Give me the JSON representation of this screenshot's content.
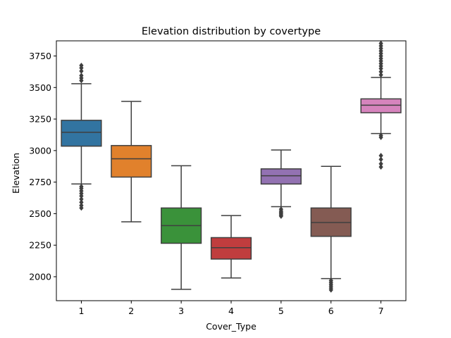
{
  "chart_data": {
    "type": "box",
    "title": "Elevation distribution by covertype",
    "xlabel": "Cover_Type",
    "ylabel": "Elevation",
    "categories": [
      "1",
      "2",
      "3",
      "4",
      "5",
      "6",
      "7"
    ],
    "ylim": [
      1810,
      3870
    ],
    "yticks": [
      2000,
      2250,
      2500,
      2750,
      3000,
      3250,
      3500,
      3750
    ],
    "grid": false,
    "colors": [
      "#3274a1",
      "#e1812c",
      "#3a923a",
      "#c03d3e",
      "#9372b2",
      "#845b53",
      "#d684bd"
    ],
    "edge_color": "#3f3f3f",
    "boxes": [
      {
        "category": "1",
        "q1": 3035,
        "median": 3145,
        "q3": 3240,
        "whisker_low": 2735,
        "whisker_high": 3530,
        "outliers": [
          2545,
          2565,
          2590,
          2615,
          2640,
          2660,
          2680,
          2700,
          2715,
          3555,
          3575,
          3595,
          3630,
          3655,
          3675
        ]
      },
      {
        "category": "2",
        "q1": 2790,
        "median": 2935,
        "q3": 3040,
        "whisker_low": 2435,
        "whisker_high": 3390,
        "outliers": []
      },
      {
        "category": "3",
        "q1": 2265,
        "median": 2405,
        "q3": 2545,
        "whisker_low": 1900,
        "whisker_high": 2880,
        "outliers": []
      },
      {
        "category": "4",
        "q1": 2140,
        "median": 2230,
        "q3": 2310,
        "whisker_low": 1990,
        "whisker_high": 2485,
        "outliers": []
      },
      {
        "category": "5",
        "q1": 2735,
        "median": 2800,
        "q3": 2855,
        "whisker_low": 2555,
        "whisker_high": 3005,
        "outliers": [
          2480,
          2490,
          2500,
          2510,
          2520,
          2535
        ]
      },
      {
        "category": "6",
        "q1": 2320,
        "median": 2430,
        "q3": 2545,
        "whisker_low": 1985,
        "whisker_high": 2875,
        "outliers": [
          1895,
          1910,
          1925,
          1940,
          1955,
          1970
        ]
      },
      {
        "category": "7",
        "q1": 3300,
        "median": 3360,
        "q3": 3410,
        "whisker_low": 3135,
        "whisker_high": 3580,
        "outliers": [
          2870,
          2895,
          2930,
          2960,
          3105,
          3120,
          3600,
          3625,
          3650,
          3670,
          3690,
          3710,
          3730,
          3750,
          3770,
          3790,
          3810,
          3830,
          3850
        ]
      }
    ]
  }
}
